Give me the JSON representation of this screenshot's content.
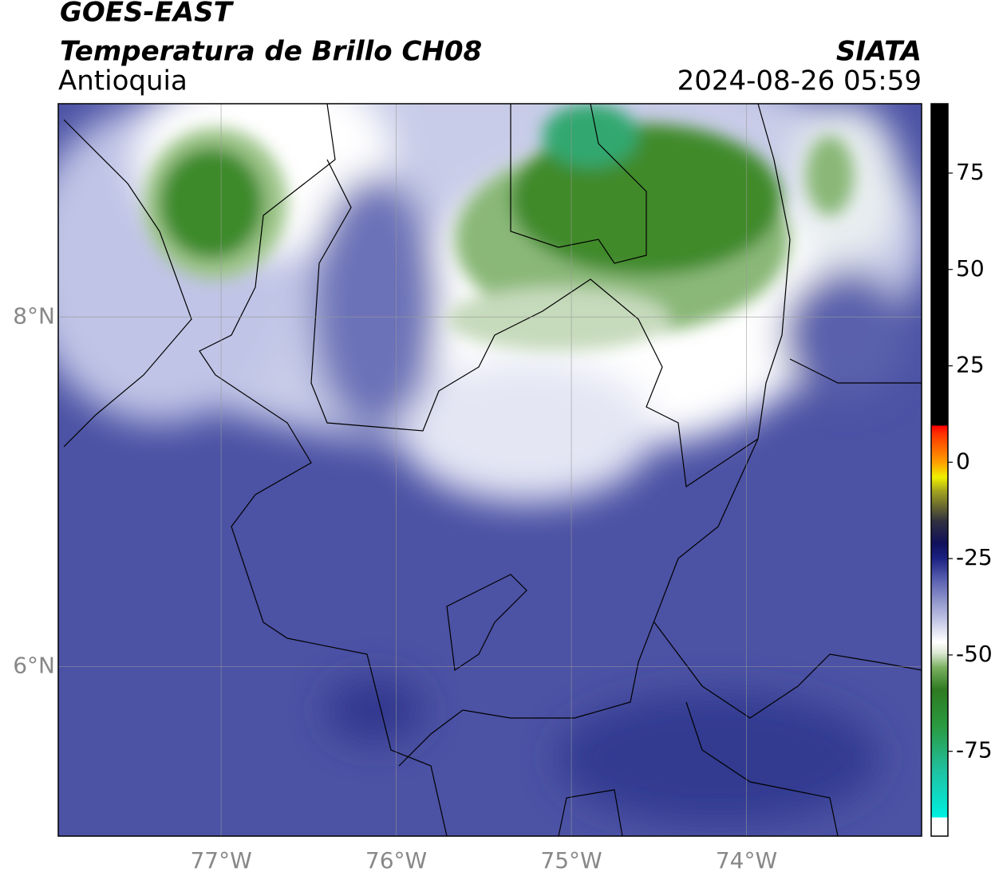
{
  "header": {
    "title": "GOES-EAST",
    "subtitle": "Temperatura de Brillo CH08",
    "region": "Antioquia",
    "source": "SIATA",
    "timestamp": "2024-08-26 05:59"
  },
  "map": {
    "xlim": [
      -77.93,
      -73.0
    ],
    "ylim": [
      5.03,
      9.22
    ],
    "xticks": [
      {
        "value": -77,
        "label": "77°W"
      },
      {
        "value": -76,
        "label": "76°W"
      },
      {
        "value": -75,
        "label": "75°W"
      },
      {
        "value": -74,
        "label": "74°W"
      }
    ],
    "yticks": [
      {
        "value": 8,
        "label": "8°N"
      },
      {
        "value": 6,
        "label": "6°N"
      }
    ],
    "grid": true
  },
  "colorbar": {
    "lim": [
      -97,
      93
    ],
    "ticks": [
      75,
      50,
      25,
      0,
      -25,
      -50,
      -75
    ]
  }
}
